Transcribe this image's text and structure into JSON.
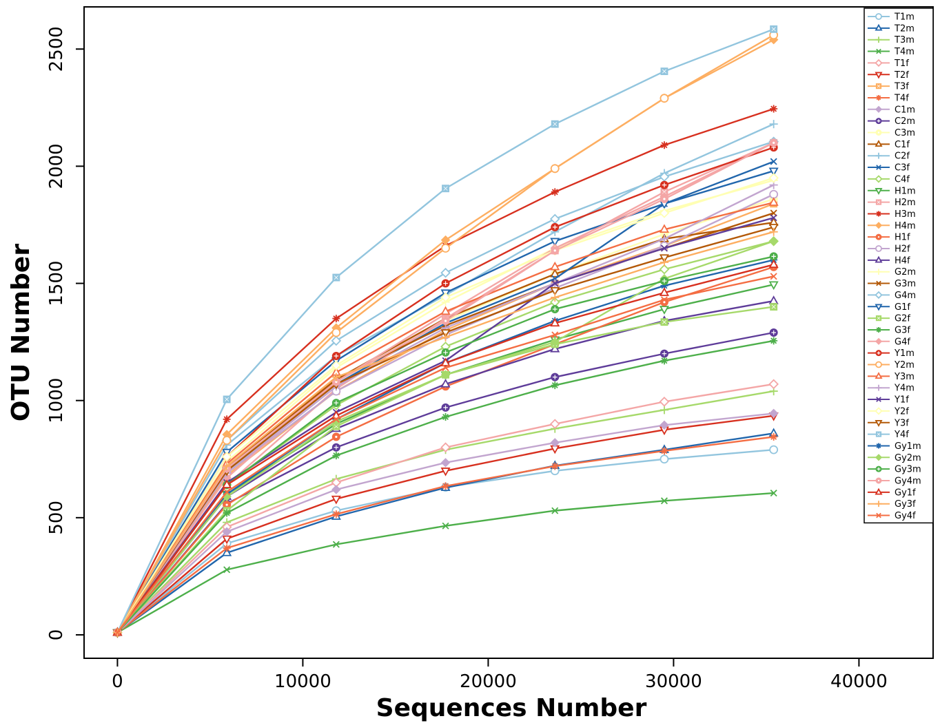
{
  "chart_data": {
    "type": "line",
    "xlabel": "Sequences Number",
    "ylabel": "OTU Number",
    "xlim": [
      -1800,
      44000
    ],
    "ylim": [
      -100,
      2680
    ],
    "x_ticks": [
      0,
      10000,
      20000,
      30000,
      40000
    ],
    "y_ticks": [
      0,
      500,
      1000,
      1500,
      2000,
      2500
    ],
    "grid": false,
    "legend_position": "top-right",
    "x": [
      0,
      5900,
      11800,
      17700,
      23600,
      29500,
      35400
    ],
    "series": [
      {
        "name": "T1m",
        "color": "#92c5de",
        "marker": "circle-open",
        "values": [
          10,
          390,
          530,
          630,
          700,
          750,
          790
        ]
      },
      {
        "name": "T2m",
        "color": "#2166ac",
        "marker": "triangle-open",
        "values": [
          10,
          350,
          505,
          628,
          722,
          790,
          860
        ]
      },
      {
        "name": "T3m",
        "color": "#a6d96a",
        "marker": "plus",
        "values": [
          10,
          480,
          665,
          790,
          880,
          960,
          1040
        ]
      },
      {
        "name": "T4m",
        "color": "#4daf4a",
        "marker": "x",
        "values": [
          10,
          278,
          386,
          465,
          530,
          572,
          605
        ]
      },
      {
        "name": "T1f",
        "color": "#f4a6a6",
        "marker": "diamond-open",
        "values": [
          10,
          460,
          650,
          800,
          900,
          995,
          1070
        ]
      },
      {
        "name": "T2f",
        "color": "#d7301f",
        "marker": "triangle-down-open",
        "values": [
          10,
          410,
          580,
          700,
          795,
          875,
          935
        ]
      },
      {
        "name": "T3f",
        "color": "#fdae61",
        "marker": "square-filled",
        "values": [
          10,
          680,
          1040,
          1300,
          1500,
          1660,
          1840
        ]
      },
      {
        "name": "T4f",
        "color": "#f46d43",
        "marker": "asterisk",
        "values": [
          10,
          370,
          515,
          635,
          720,
          785,
          845
        ]
      },
      {
        "name": "C1m",
        "color": "#c2a5cf",
        "marker": "diamond-filled",
        "values": [
          10,
          440,
          620,
          735,
          820,
          895,
          945
        ]
      },
      {
        "name": "C2m",
        "color": "#5e3c99",
        "marker": "circle-plus",
        "values": [
          10,
          560,
          800,
          970,
          1100,
          1200,
          1290
        ]
      },
      {
        "name": "C3m",
        "color": "#ffffb3",
        "marker": "circle-filled",
        "values": [
          10,
          700,
          1080,
          1340,
          1540,
          1710,
          1860
        ]
      },
      {
        "name": "C1f",
        "color": "#b35806",
        "marker": "triangle-open",
        "values": [
          10,
          720,
          1090,
          1350,
          1540,
          1690,
          1760
        ]
      },
      {
        "name": "C2f",
        "color": "#92c5de",
        "marker": "plus",
        "values": [
          10,
          810,
          1190,
          1450,
          1720,
          1970,
          2180
        ]
      },
      {
        "name": "C3f",
        "color": "#2166ac",
        "marker": "x",
        "values": [
          10,
          700,
          1070,
          1330,
          1520,
          1840,
          2020
        ]
      },
      {
        "name": "C4f",
        "color": "#a6d96a",
        "marker": "diamond-open",
        "values": [
          10,
          640,
          980,
          1230,
          1420,
          1560,
          1680
        ]
      },
      {
        "name": "H1m",
        "color": "#4daf4a",
        "marker": "triangle-down-open",
        "values": [
          10,
          600,
          900,
          1110,
          1260,
          1390,
          1495
        ]
      },
      {
        "name": "H2m",
        "color": "#f4a6a6",
        "marker": "square-filled",
        "values": [
          10,
          640,
          1050,
          1350,
          1640,
          1890,
          2100
        ]
      },
      {
        "name": "H3m",
        "color": "#d7301f",
        "marker": "asterisk",
        "values": [
          10,
          920,
          1350,
          1660,
          1890,
          2090,
          2245
        ]
      },
      {
        "name": "H4m",
        "color": "#fdae61",
        "marker": "diamond-filled",
        "values": [
          10,
          855,
          1310,
          1685,
          1990,
          2290,
          2540
        ]
      },
      {
        "name": "H1f",
        "color": "#f46d43",
        "marker": "circle-filled",
        "values": [
          10,
          555,
          845,
          1060,
          1240,
          1420,
          1570
        ]
      },
      {
        "name": "H2f",
        "color": "#c2a5cf",
        "marker": "circle-open",
        "values": [
          10,
          690,
          1040,
          1280,
          1480,
          1660,
          1880
        ]
      },
      {
        "name": "H4f",
        "color": "#5e3c99",
        "marker": "triangle-open",
        "values": [
          10,
          590,
          880,
          1070,
          1220,
          1340,
          1425
        ]
      },
      {
        "name": "G2m",
        "color": "#ffffb3",
        "marker": "plus",
        "values": [
          10,
          740,
          1140,
          1420,
          1650,
          1810,
          1940
        ]
      },
      {
        "name": "G3m",
        "color": "#b35806",
        "marker": "x",
        "values": [
          10,
          710,
          1090,
          1320,
          1500,
          1650,
          1800
        ]
      },
      {
        "name": "G4m",
        "color": "#92c5de",
        "marker": "diamond-open",
        "values": [
          10,
          830,
          1255,
          1545,
          1775,
          1955,
          2105
        ]
      },
      {
        "name": "G1f",
        "color": "#2166ac",
        "marker": "triangle-down-open",
        "values": [
          10,
          780,
          1170,
          1460,
          1680,
          1840,
          1980
        ]
      },
      {
        "name": "G2f",
        "color": "#a6d96a",
        "marker": "square-filled",
        "values": [
          10,
          530,
          890,
          1110,
          1240,
          1335,
          1400
        ]
      },
      {
        "name": "G3f",
        "color": "#4daf4a",
        "marker": "asterisk",
        "values": [
          10,
          520,
          765,
          930,
          1065,
          1170,
          1255
        ]
      },
      {
        "name": "G4f",
        "color": "#f4a6a6",
        "marker": "diamond-filled",
        "values": [
          10,
          670,
          1080,
          1370,
          1650,
          1870,
          2100
        ]
      },
      {
        "name": "Y1m",
        "color": "#d7301f",
        "marker": "circle-plus",
        "values": [
          10,
          760,
          1190,
          1500,
          1740,
          1920,
          2080
        ]
      },
      {
        "name": "Y2m",
        "color": "#fdae61",
        "marker": "circle-open",
        "values": [
          10,
          830,
          1290,
          1650,
          1990,
          2290,
          2560
        ]
      },
      {
        "name": "Y3m",
        "color": "#f46d43",
        "marker": "triangle-open",
        "values": [
          10,
          730,
          1120,
          1380,
          1570,
          1730,
          1845
        ]
      },
      {
        "name": "Y4m",
        "color": "#c2a5cf",
        "marker": "plus",
        "values": [
          10,
          690,
          1060,
          1310,
          1500,
          1690,
          1920
        ]
      },
      {
        "name": "Y1f",
        "color": "#5e3c99",
        "marker": "x",
        "values": [
          10,
          650,
          950,
          1170,
          1500,
          1650,
          1780
        ]
      },
      {
        "name": "Y2f",
        "color": "#ffffb3",
        "marker": "diamond-open",
        "values": [
          10,
          760,
          1150,
          1440,
          1640,
          1800,
          1950
        ]
      },
      {
        "name": "Y3f",
        "color": "#b35806",
        "marker": "triangle-down-open",
        "values": [
          10,
          700,
          1070,
          1290,
          1470,
          1610,
          1740
        ]
      },
      {
        "name": "Y4f",
        "color": "#92c5de",
        "marker": "square-filled",
        "values": [
          10,
          1005,
          1525,
          1905,
          2180,
          2405,
          2585
        ]
      },
      {
        "name": "Gy1m",
        "color": "#2166ac",
        "marker": "asterisk",
        "values": [
          10,
          600,
          920,
          1160,
          1340,
          1490,
          1600
        ]
      },
      {
        "name": "Gy2m",
        "color": "#a6d96a",
        "marker": "diamond-filled",
        "values": [
          10,
          590,
          910,
          1110,
          1250,
          1520,
          1680
        ]
      },
      {
        "name": "Gy3m",
        "color": "#4daf4a",
        "marker": "circle-plus",
        "values": [
          10,
          640,
          990,
          1205,
          1390,
          1510,
          1615
        ]
      },
      {
        "name": "Gy4m",
        "color": "#f4a6a6",
        "marker": "circle-filled",
        "values": [
          10,
          710,
          1080,
          1340,
          1640,
          1860,
          2100
        ]
      },
      {
        "name": "Gy1f",
        "color": "#d7301f",
        "marker": "triangle-open",
        "values": [
          10,
          640,
          935,
          1160,
          1330,
          1460,
          1580
        ]
      },
      {
        "name": "Gy3f",
        "color": "#fdae61",
        "marker": "plus",
        "values": [
          10,
          720,
          1100,
          1270,
          1440,
          1590,
          1720
        ]
      },
      {
        "name": "Gy4f",
        "color": "#f46d43",
        "marker": "x",
        "values": [
          10,
          610,
          920,
          1140,
          1280,
          1430,
          1530
        ]
      }
    ]
  }
}
